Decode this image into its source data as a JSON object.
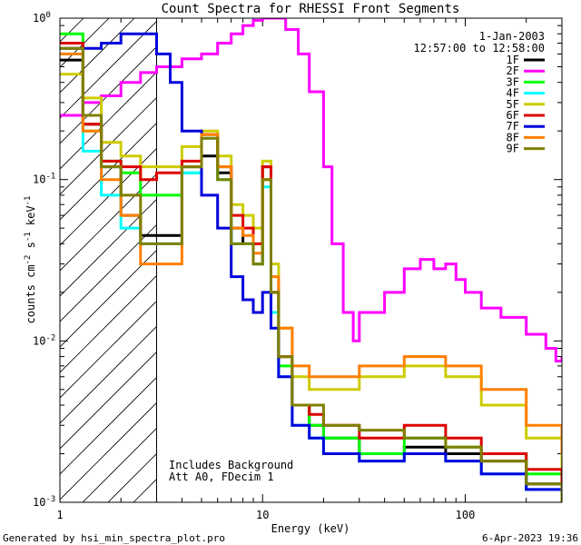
{
  "chart_data": {
    "type": "line",
    "title": "Count Spectra for RHESSI Front Segments",
    "xlabel": "Energy (keV)",
    "ylabel_parts": [
      "counts cm",
      "-2",
      " s",
      "-1",
      " keV",
      "-1"
    ],
    "xscale": "log",
    "yscale": "log",
    "xlim": [
      1,
      300
    ],
    "ylim": [
      0.001,
      1
    ],
    "x_major_ticks": [
      {
        "value": 1,
        "label": "1"
      },
      {
        "value": 10,
        "label": "10"
      },
      {
        "value": 100,
        "label": "100"
      }
    ],
    "y_major_ticks": [
      {
        "value": 0.001,
        "base": "10",
        "exp": "-3"
      },
      {
        "value": 0.01,
        "base": "10",
        "exp": "-2"
      },
      {
        "value": 0.1,
        "base": "10",
        "exp": "-1"
      },
      {
        "value": 1,
        "base": "10",
        "exp": "0"
      }
    ],
    "date": "1-Jan-2003",
    "time_range": "12:57:00 to 12:58:00",
    "shaded_below_energy_kev": 3,
    "annotations": [
      "Includes Background",
      "Att A0, FDecim 1"
    ],
    "footer_left": "Generated by hsi_min_spectra_plot.pro",
    "footer_right": "6-Apr-2023 19:36",
    "series": [
      {
        "name": "1F",
        "color": "#000000",
        "x": [
          1,
          1.3,
          1.6,
          2,
          2.5,
          3,
          4,
          5,
          6,
          7,
          8,
          9,
          10,
          11,
          12,
          14,
          17,
          20,
          30,
          50,
          80,
          120,
          200,
          300
        ],
        "y": [
          0.55,
          0.22,
          0.12,
          0.06,
          0.045,
          0.045,
          0.12,
          0.14,
          0.11,
          0.05,
          0.04,
          0.03,
          0.12,
          0.02,
          0.008,
          0.004,
          0.003,
          0.0025,
          0.002,
          0.0022,
          0.002,
          0.0018,
          0.0013,
          0.001
        ]
      },
      {
        "name": "2F",
        "color": "#ff00ff",
        "x": [
          1,
          1.3,
          1.6,
          2,
          2.5,
          3,
          4,
          5,
          6,
          7,
          8,
          9,
          10,
          11,
          13,
          15,
          17,
          20,
          22,
          25,
          28,
          30,
          35,
          40,
          50,
          60,
          70,
          80,
          90,
          100,
          120,
          150,
          200,
          250,
          280,
          300
        ],
        "y": [
          0.25,
          0.3,
          0.33,
          0.4,
          0.46,
          0.5,
          0.56,
          0.6,
          0.7,
          0.8,
          0.9,
          0.97,
          1.0,
          1.0,
          0.85,
          0.6,
          0.35,
          0.12,
          0.04,
          0.015,
          0.01,
          0.015,
          0.015,
          0.02,
          0.028,
          0.032,
          0.028,
          0.03,
          0.024,
          0.02,
          0.016,
          0.014,
          0.011,
          0.009,
          0.0075,
          0.008
        ]
      },
      {
        "name": "3F",
        "color": "#00ff00",
        "x": [
          1,
          1.3,
          1.6,
          2,
          2.5,
          3,
          4,
          5,
          6,
          7,
          8,
          9,
          10,
          11,
          12,
          14,
          17,
          20,
          30,
          50,
          80,
          120,
          200,
          300
        ],
        "y": [
          0.8,
          0.2,
          0.13,
          0.11,
          0.08,
          0.08,
          0.11,
          0.19,
          0.1,
          0.04,
          0.04,
          0.03,
          0.1,
          0.02,
          0.007,
          0.004,
          0.003,
          0.0025,
          0.002,
          0.0025,
          0.0022,
          0.002,
          0.0015,
          0.0012
        ]
      },
      {
        "name": "4F",
        "color": "#00ffff",
        "x": [
          1,
          1.3,
          1.6,
          2,
          2.5,
          3,
          4,
          5,
          6,
          7,
          8,
          9,
          10,
          11,
          12,
          14,
          17,
          20,
          30,
          50,
          80,
          120,
          200,
          300
        ],
        "y": [
          0.6,
          0.15,
          0.08,
          0.05,
          0.04,
          0.04,
          0.11,
          0.18,
          0.1,
          0.04,
          0.04,
          0.03,
          0.09,
          0.015,
          0.006,
          0.003,
          0.0025,
          0.002,
          0.0018,
          0.002,
          0.0018,
          0.0015,
          0.0012,
          0.001
        ]
      },
      {
        "name": "5F",
        "color": "#cccc00",
        "x": [
          1,
          1.3,
          1.6,
          2,
          2.5,
          3,
          4,
          5,
          6,
          7,
          8,
          9,
          10,
          11,
          12,
          14,
          17,
          20,
          30,
          50,
          80,
          120,
          200,
          300
        ],
        "y": [
          0.45,
          0.32,
          0.17,
          0.14,
          0.12,
          0.12,
          0.16,
          0.2,
          0.14,
          0.07,
          0.06,
          0.05,
          0.13,
          0.03,
          0.012,
          0.006,
          0.005,
          0.005,
          0.006,
          0.007,
          0.006,
          0.004,
          0.0025,
          0.0015
        ]
      },
      {
        "name": "6F",
        "color": "#dd0000",
        "x": [
          1,
          1.3,
          1.6,
          2,
          2.5,
          3,
          4,
          5,
          6,
          7,
          8,
          9,
          10,
          11,
          12,
          14,
          17,
          20,
          30,
          50,
          80,
          120,
          200,
          300
        ],
        "y": [
          0.7,
          0.22,
          0.13,
          0.12,
          0.1,
          0.11,
          0.13,
          0.19,
          0.12,
          0.06,
          0.05,
          0.04,
          0.12,
          0.02,
          0.008,
          0.004,
          0.0035,
          0.003,
          0.0025,
          0.003,
          0.0025,
          0.002,
          0.0016,
          0.0012
        ]
      },
      {
        "name": "7F",
        "color": "#0000dd",
        "x": [
          1,
          1.3,
          1.6,
          2,
          2.5,
          3,
          3.5,
          4,
          5,
          6,
          7,
          8,
          9,
          10,
          11,
          12,
          14,
          17,
          20,
          30,
          50,
          80,
          120,
          200,
          300
        ],
        "y": [
          0.65,
          0.65,
          0.7,
          0.8,
          0.8,
          0.6,
          0.4,
          0.2,
          0.08,
          0.05,
          0.025,
          0.018,
          0.015,
          0.02,
          0.012,
          0.006,
          0.003,
          0.0025,
          0.002,
          0.0018,
          0.002,
          0.0018,
          0.0015,
          0.0012,
          0.001
        ]
      },
      {
        "name": "8F",
        "color": "#ff7f00",
        "x": [
          1,
          1.3,
          1.6,
          2,
          2.5,
          3,
          4,
          5,
          6,
          7,
          8,
          9,
          10,
          11,
          12,
          14,
          17,
          20,
          30,
          50,
          80,
          120,
          200,
          300
        ],
        "y": [
          0.6,
          0.2,
          0.1,
          0.06,
          0.03,
          0.03,
          0.12,
          0.19,
          0.12,
          0.05,
          0.045,
          0.035,
          0.1,
          0.025,
          0.012,
          0.007,
          0.006,
          0.006,
          0.007,
          0.008,
          0.007,
          0.005,
          0.003,
          0.002
        ]
      },
      {
        "name": "9F",
        "color": "#7f7f00",
        "x": [
          1,
          1.3,
          1.6,
          2,
          2.5,
          3,
          4,
          5,
          6,
          7,
          8,
          9,
          10,
          11,
          12,
          14,
          17,
          20,
          30,
          50,
          80,
          120,
          200,
          300
        ],
        "y": [
          0.65,
          0.25,
          0.12,
          0.08,
          0.04,
          0.04,
          0.12,
          0.18,
          0.1,
          0.04,
          0.04,
          0.03,
          0.1,
          0.02,
          0.008,
          0.004,
          0.004,
          0.003,
          0.0028,
          0.0025,
          0.0022,
          0.0018,
          0.0013,
          0.001
        ]
      }
    ]
  }
}
